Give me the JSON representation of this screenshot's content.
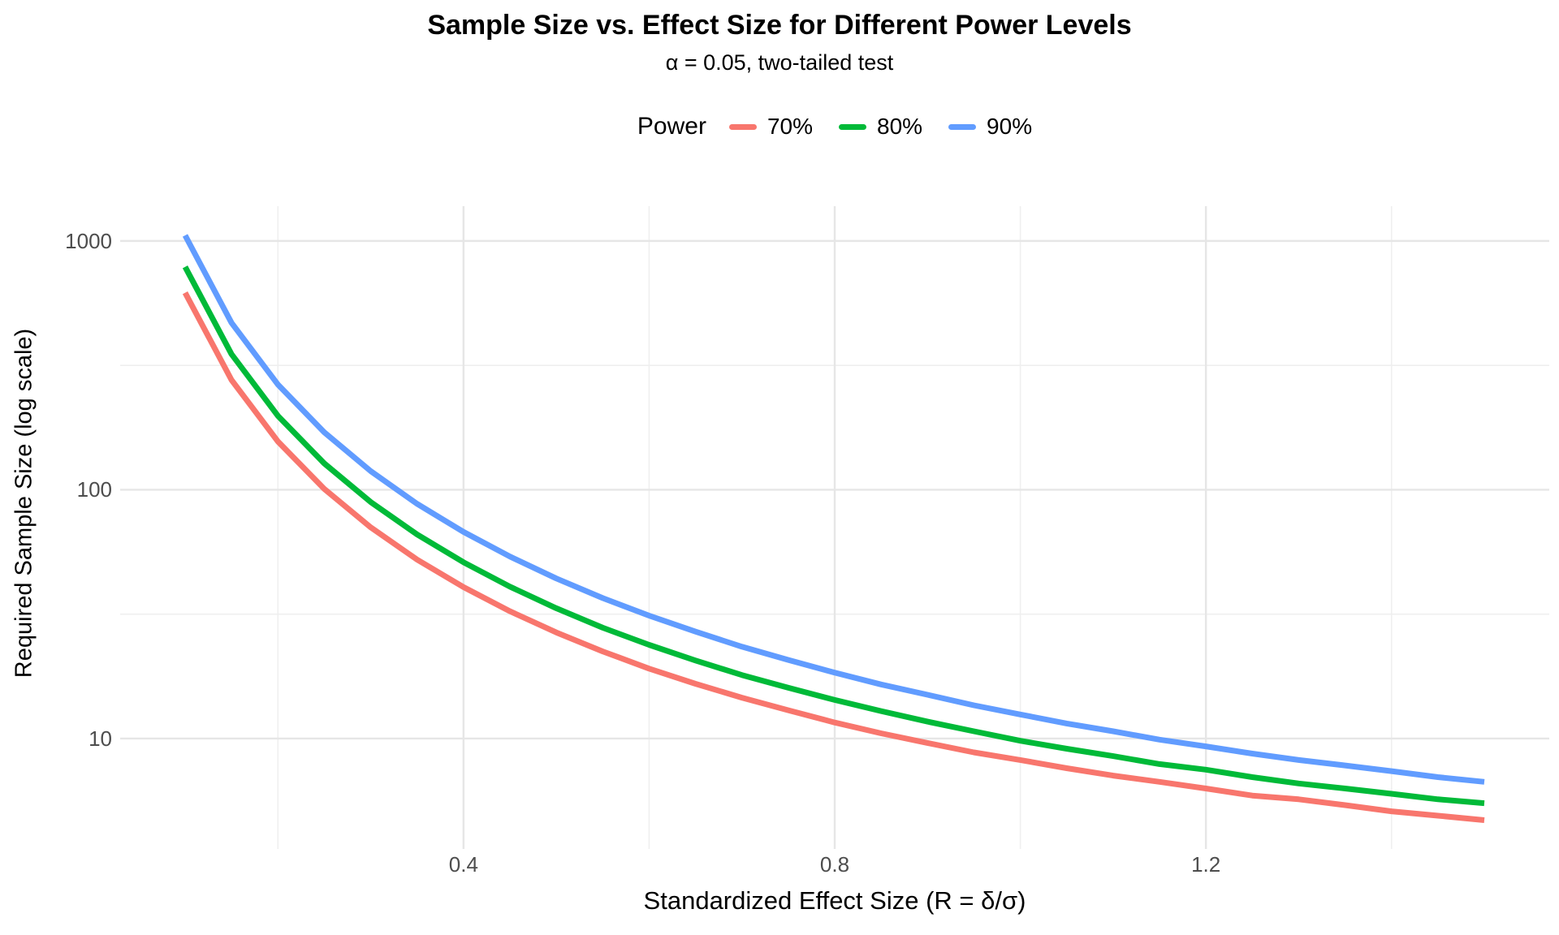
{
  "header": {
    "title": "Sample Size vs. Effect Size for Different Power Levels",
    "subtitle": "α = 0.05, two-tailed test"
  },
  "legend": {
    "title": "Power",
    "position": "top-center"
  },
  "axes": {
    "x_title": "Standardized Effect Size (R = δ/σ)",
    "y_title": "Required Sample Size (log scale)"
  },
  "chart_data": {
    "type": "line",
    "title": "Sample Size vs. Effect Size for Different Power Levels",
    "subtitle": "α = 0.05, two-tailed test",
    "xlabel": "Standardized Effect Size (R = δ/σ)",
    "ylabel": "Required Sample Size (log scale)",
    "yscale": "log10",
    "grid": true,
    "legend_title": "Power",
    "legend_position": "top",
    "xlim": [
      0.03,
      1.57
    ],
    "ylim": [
      3.6,
      1380
    ],
    "x_ticks": {
      "values": [
        0.4,
        0.8,
        1.2
      ],
      "labels": [
        "0.4",
        "0.8",
        "1.2"
      ]
    },
    "x_minor": [
      0.2,
      0.6,
      1.0,
      1.4
    ],
    "y_ticks": {
      "values": [
        10,
        100,
        1000
      ],
      "labels": [
        "10",
        "100",
        "1000"
      ]
    },
    "y_minor": [
      31.62,
      316.23
    ],
    "x": [
      0.1,
      0.15,
      0.2,
      0.25,
      0.3,
      0.35,
      0.4,
      0.45,
      0.5,
      0.55,
      0.6,
      0.65,
      0.7,
      0.75,
      0.8,
      0.85,
      0.9,
      0.95,
      1,
      1.05,
      1.1,
      1.15,
      1.2,
      1.25,
      1.3,
      1.35,
      1.4,
      1.45,
      1.5
    ],
    "series": [
      {
        "name": "70%",
        "color": "#F8766D",
        "values": [
          619.2,
          276.3,
          156.3,
          100.8,
          70.6,
          52.4,
          40.6,
          32.5,
          26.7,
          22.4,
          19.1,
          16.6,
          14.6,
          13,
          11.6,
          10.5,
          9.6,
          8.8,
          8.2,
          7.6,
          7.1,
          6.7,
          6.3,
          5.9,
          5.7,
          5.4,
          5.1,
          4.9,
          4.7
        ]
      },
      {
        "name": "80%",
        "color": "#00BA38",
        "values": [
          786.9,
          350.8,
          198.2,
          127.6,
          89.2,
          66.1,
          51.1,
          40.8,
          33.4,
          27.9,
          23.8,
          20.6,
          18,
          16,
          14.3,
          12.9,
          11.7,
          10.7,
          9.8,
          9.1,
          8.5,
          7.9,
          7.5,
          7,
          6.6,
          6.3,
          6,
          5.7,
          5.5
        ]
      },
      {
        "name": "90%",
        "color": "#619CFF",
        "values": [
          1052.8,
          469,
          264.7,
          170.1,
          118.8,
          87.8,
          67.7,
          53.9,
          44,
          36.7,
          31.2,
          26.9,
          23.4,
          20.7,
          18.4,
          16.5,
          15,
          13.6,
          12.5,
          11.5,
          10.7,
          9.9,
          9.3,
          8.7,
          8.2,
          7.8,
          7.4,
          7,
          6.7
        ]
      }
    ],
    "style": {
      "line_width": 7,
      "grid_major_color": "#E6E6E6",
      "grid_minor_color": "#EFEFEF",
      "tick_label_color": "#4d4d4d",
      "background": "#ffffff"
    }
  }
}
